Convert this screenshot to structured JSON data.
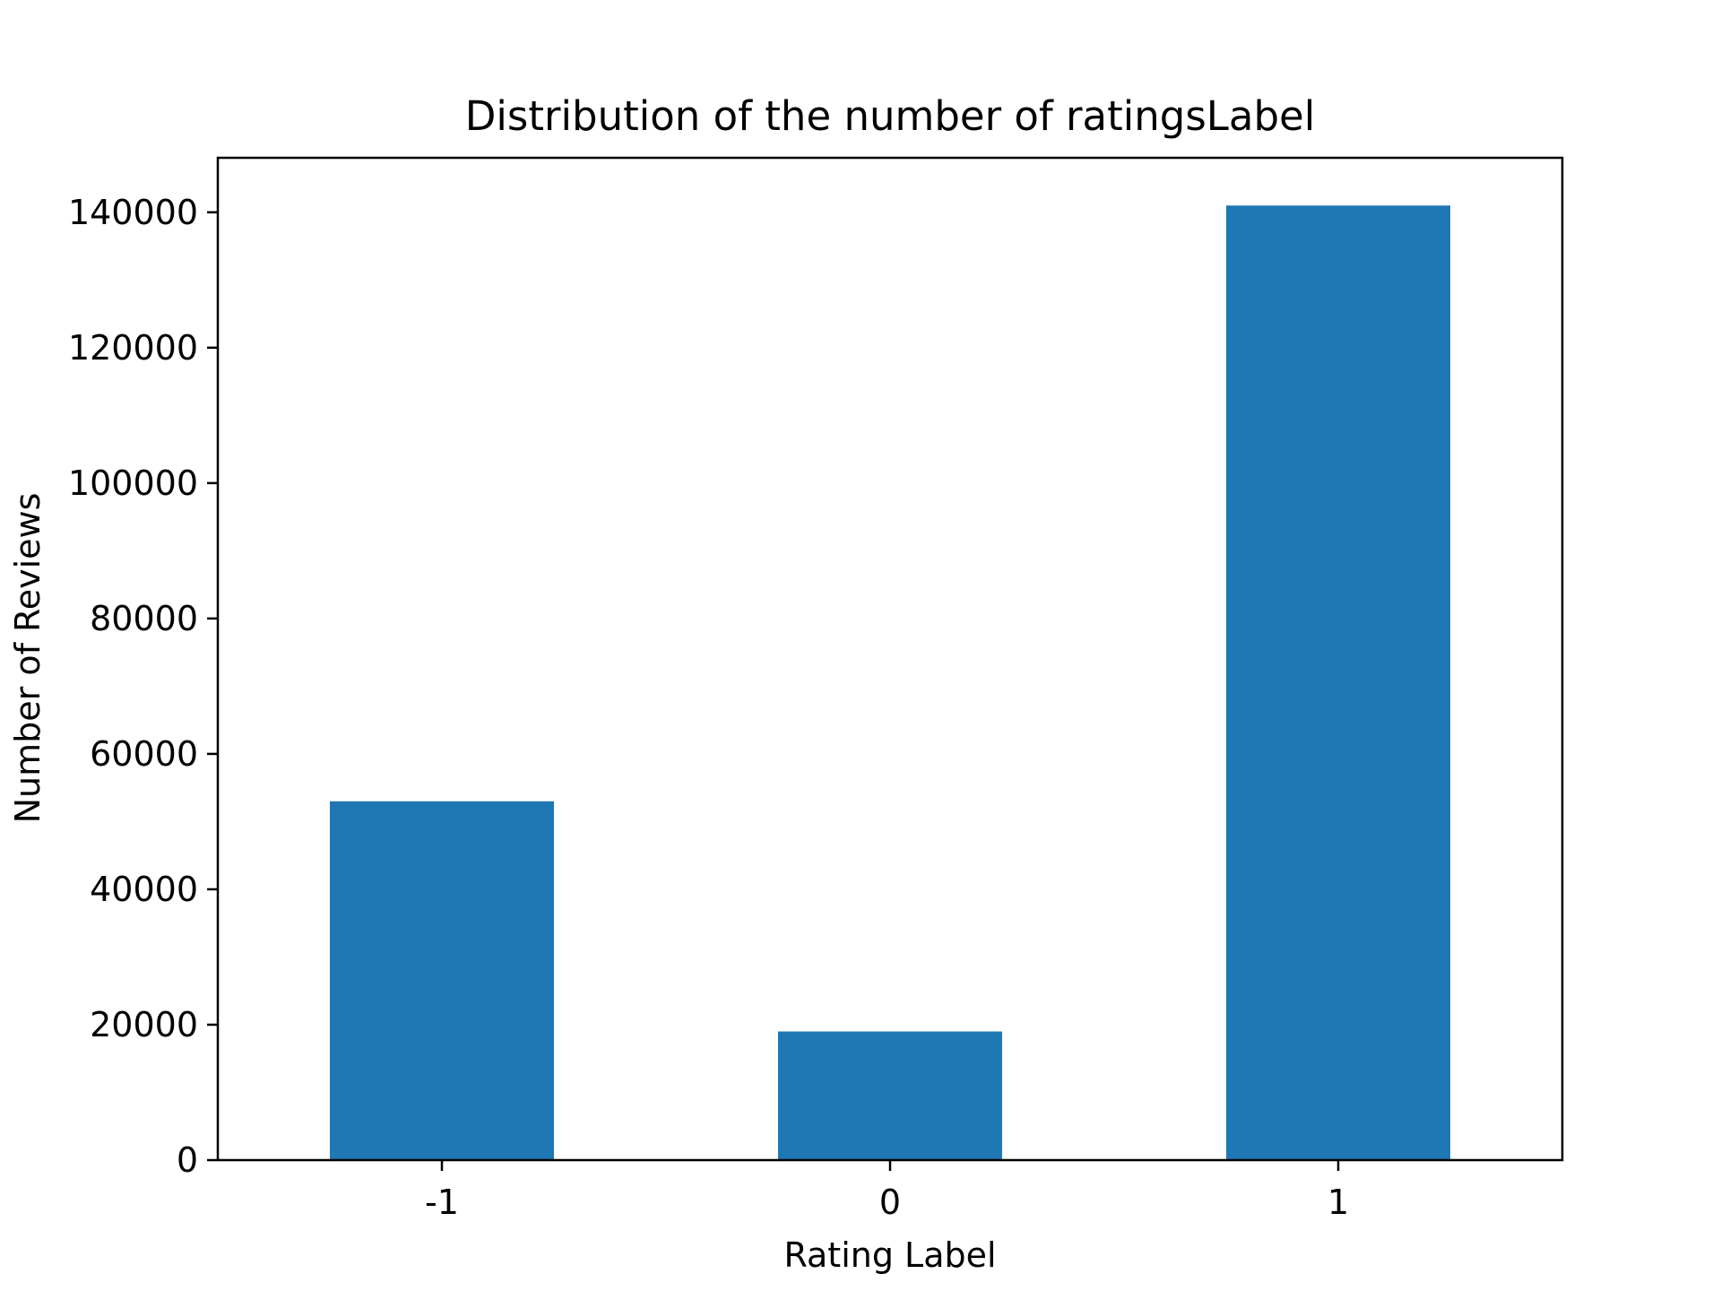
{
  "chart_data": {
    "type": "bar",
    "title": "Distribution of the number of ratingsLabel",
    "xlabel": "Rating Label",
    "ylabel": "Number of Reviews",
    "categories": [
      "-1",
      "0",
      "1"
    ],
    "values": [
      53000,
      19000,
      141000
    ],
    "ylim": [
      0,
      148050
    ],
    "yticks": [
      0,
      20000,
      40000,
      60000,
      80000,
      100000,
      120000,
      140000
    ],
    "ytick_labels": [
      "0",
      "20000",
      "40000",
      "60000",
      "80000",
      "100000",
      "120000",
      "140000"
    ],
    "grid": false,
    "legend": "none",
    "bar_color": "#1f77b4"
  }
}
